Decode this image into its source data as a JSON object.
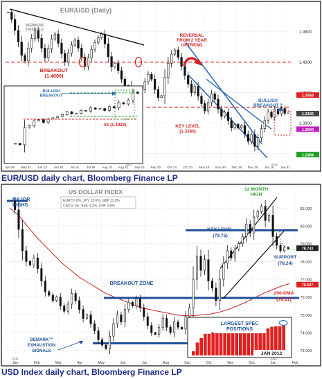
{
  "chart_data": [
    {
      "type": "line",
      "title": "EUR/USD (Daily)",
      "caption": "EUR/USD daily chart, Bloomberg Finance LP",
      "x_ticks": [
        "Apr 29",
        "May 31",
        "Jun 13",
        "Jun 30",
        "Jul 15",
        "Jul 29",
        "Aug 15",
        "Aug 31",
        "Sep 15",
        "Sep 30",
        "Oct 14",
        "Oct 31",
        "Nov 15",
        "Nov 30",
        "Dec 15",
        "Dec 30",
        "Jan 16",
        "Jan 31"
      ],
      "year_labels": [
        "2011",
        "2012"
      ],
      "y_ticks": [
        "1.4500",
        "1.4000",
        "1.3500",
        "1.3000",
        "1.2500"
      ],
      "ylim": [
        1.236,
        1.495
      ],
      "price_tags": [
        {
          "value": 1.3459,
          "label": "1.3459",
          "color": "#e02020"
        },
        {
          "value": 1.3156,
          "label": "1.3156",
          "color": "#444444"
        },
        {
          "value": 1.29,
          "label": "1.2900",
          "color": "#c020c0"
        },
        {
          "value": 1.2484,
          "label": "1.2484",
          "color": "#20a020"
        }
      ],
      "closes": [
        1.482,
        1.47,
        1.452,
        1.433,
        1.411,
        1.402,
        1.423,
        1.439,
        1.452,
        1.439,
        1.423,
        1.407,
        1.422,
        1.438,
        1.446,
        1.431,
        1.414,
        1.4,
        1.415,
        1.428,
        1.436,
        1.423,
        1.408,
        1.393,
        1.407,
        1.421,
        1.432,
        1.44,
        1.446,
        1.43,
        1.409,
        1.392,
        1.398,
        1.386,
        1.372,
        1.362,
        1.36,
        1.34,
        1.332,
        1.343,
        1.355,
        1.368,
        1.38,
        1.372,
        1.355,
        1.342,
        1.345,
        1.375,
        1.398,
        1.413,
        1.42,
        1.408,
        1.393,
        1.378,
        1.364,
        1.35,
        1.36,
        1.344,
        1.332,
        1.32,
        1.334,
        1.348,
        1.339,
        1.323,
        1.311,
        1.318,
        1.304,
        1.292,
        1.298,
        1.292,
        1.296,
        1.282,
        1.27,
        1.281,
        1.262,
        1.276,
        1.291,
        1.305,
        1.318,
        1.31,
        1.323,
        1.315,
        1.324,
        1.316,
        1.318
      ],
      "annotations": {
        "bermuda": "BERMUDA\nTRIANGLE",
        "breakout": "BREAKOUT\n(1.4000)",
        "reversal": "REVERSAL\nFROM 2 YEAR\nUPTREND",
        "bullish_breakout": "BULLISH\nBREAKOUT ?",
        "key_level": "KEY LEVEL\n(1.3260)"
      },
      "levels": {
        "breakout": 1.4,
        "key_level": 1.326
      },
      "inset": {
        "label_bullish": "BULLISH\nBREAKOUT",
        "label_s1": "S1 (1.3028)"
      }
    },
    {
      "type": "line",
      "title": "US DOLLAR INDEX",
      "caption": "USD Index daily chart, Bloomberg Finance LP",
      "weights": [
        "EUR 57.6%, JPY 13.6%, GBP 11.9%",
        "CAD 9.1%,  SEK 4.2%,  CHF 3.6%"
      ],
      "x_ticks": [
        "Jan",
        "Feb",
        "Mar",
        "Apr",
        "May",
        "Jun",
        "Jul",
        "Aug",
        "Sep",
        "Oct",
        "Nov",
        "Dec",
        "Jan",
        "Feb"
      ],
      "year_labels": [
        "2011",
        "2012"
      ],
      "y_ticks": [
        "81.000",
        "80.000",
        "79.000",
        "78.000",
        "77.000",
        "76.000",
        "75.000",
        "74.000",
        "73.000"
      ],
      "ylim": [
        72.6,
        82.1
      ],
      "price_tags": [
        {
          "value": 78.743,
          "label": "78.743",
          "color": "#222222"
        },
        {
          "value": 76.697,
          "label": "76.697",
          "color": "#e02020"
        }
      ],
      "closes": [
        81.4,
        80.9,
        79.8,
        78.6,
        78.0,
        77.8,
        78.2,
        77.6,
        76.9,
        76.3,
        76.1,
        75.8,
        76.0,
        75.5,
        75.2,
        75.6,
        76.2,
        75.8,
        75.3,
        74.8,
        75.0,
        74.5,
        74.1,
        73.6,
        73.3,
        73.1,
        73.8,
        74.5,
        75.0,
        74.6,
        75.3,
        75.7,
        75.5,
        75.9,
        75.4,
        74.9,
        74.4,
        74.0,
        73.9,
        74.3,
        74.8,
        74.3,
        74.0,
        74.6,
        74.3,
        74.2,
        74.9,
        75.4,
        77.0,
        78.3,
        77.5,
        78.1,
        76.9,
        76.5,
        75.8,
        77.0,
        77.9,
        78.6,
        78.2,
        78.7,
        79.0,
        79.4,
        80.1,
        79.6,
        80.5,
        80.8,
        81.1,
        80.3,
        80.6,
        79.4,
        78.9,
        78.6,
        78.8,
        78.7
      ],
      "annotations": {
        "major_highs": "MAJOR\nHIGHS",
        "month12": "12 MONTH\nHIGH",
        "key_level": "KEY LEVEL\n(79.75)",
        "support": "SUPPORT\n(78.24)",
        "breakout_zone": "BREAKOUT ZONE",
        "dma": "200-DMA\n(76.31)",
        "demark": "DEMARK™\nEXHAUSTION\nSIGNALS"
      },
      "levels": {
        "key_level": 79.75,
        "breakout_zone": 75.95,
        "floor": 73.4
      },
      "inset": {
        "title": "LARGEST SPEC\nPOSITIONS",
        "footer": "JAN 2012",
        "bars": [
          1.0,
          3.1,
          4.2,
          5.2,
          5.2,
          5.6,
          5.5,
          5.8,
          5.9,
          6.1,
          6.4,
          7.0,
          7.0,
          7.0,
          7.1,
          7.1,
          6.7,
          6.2,
          6.6,
          6.5,
          6.9,
          7.0,
          7.0,
          7.3
        ]
      }
    }
  ]
}
